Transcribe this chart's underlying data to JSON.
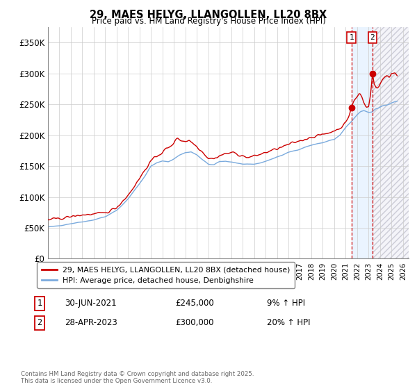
{
  "title_line1": "29, MAES HELYG, LLANGOLLEN, LL20 8BX",
  "title_line2": "Price paid vs. HM Land Registry's House Price Index (HPI)",
  "xlim_start": 1995.0,
  "xlim_end": 2026.5,
  "ylim": [
    0,
    375000
  ],
  "yticks": [
    0,
    50000,
    100000,
    150000,
    200000,
    250000,
    300000,
    350000
  ],
  "ytick_labels": [
    "£0",
    "£50K",
    "£100K",
    "£150K",
    "£200K",
    "£250K",
    "£300K",
    "£350K"
  ],
  "xtick_years": [
    1995,
    1996,
    1997,
    1998,
    1999,
    2000,
    2001,
    2002,
    2003,
    2004,
    2005,
    2006,
    2007,
    2008,
    2009,
    2010,
    2011,
    2012,
    2013,
    2014,
    2015,
    2016,
    2017,
    2018,
    2019,
    2020,
    2021,
    2022,
    2023,
    2024,
    2025,
    2026
  ],
  "hpi_color": "#7aaadd",
  "price_color": "#cc0000",
  "marker_color": "#cc0000",
  "vline_color": "#cc0000",
  "shade_color": "#ddeeff",
  "legend_label_price": "29, MAES HELYG, LLANGOLLEN, LL20 8BX (detached house)",
  "legend_label_hpi": "HPI: Average price, detached house, Denbighshire",
  "annotation1_box": "1",
  "annotation1_date": "30-JUN-2021",
  "annotation1_price": "£245,000",
  "annotation1_pct": "9% ↑ HPI",
  "annotation2_box": "2",
  "annotation2_date": "28-APR-2023",
  "annotation2_price": "£300,000",
  "annotation2_pct": "20% ↑ HPI",
  "event1_year": 2021.5,
  "event2_year": 2023.33,
  "event1_price": 245000,
  "event2_price": 300000,
  "footnote_line1": "Contains HM Land Registry data © Crown copyright and database right 2025.",
  "footnote_line2": "This data is licensed under the Open Government Licence v3.0.",
  "bg_color": "#ffffff",
  "grid_color": "#cccccc"
}
